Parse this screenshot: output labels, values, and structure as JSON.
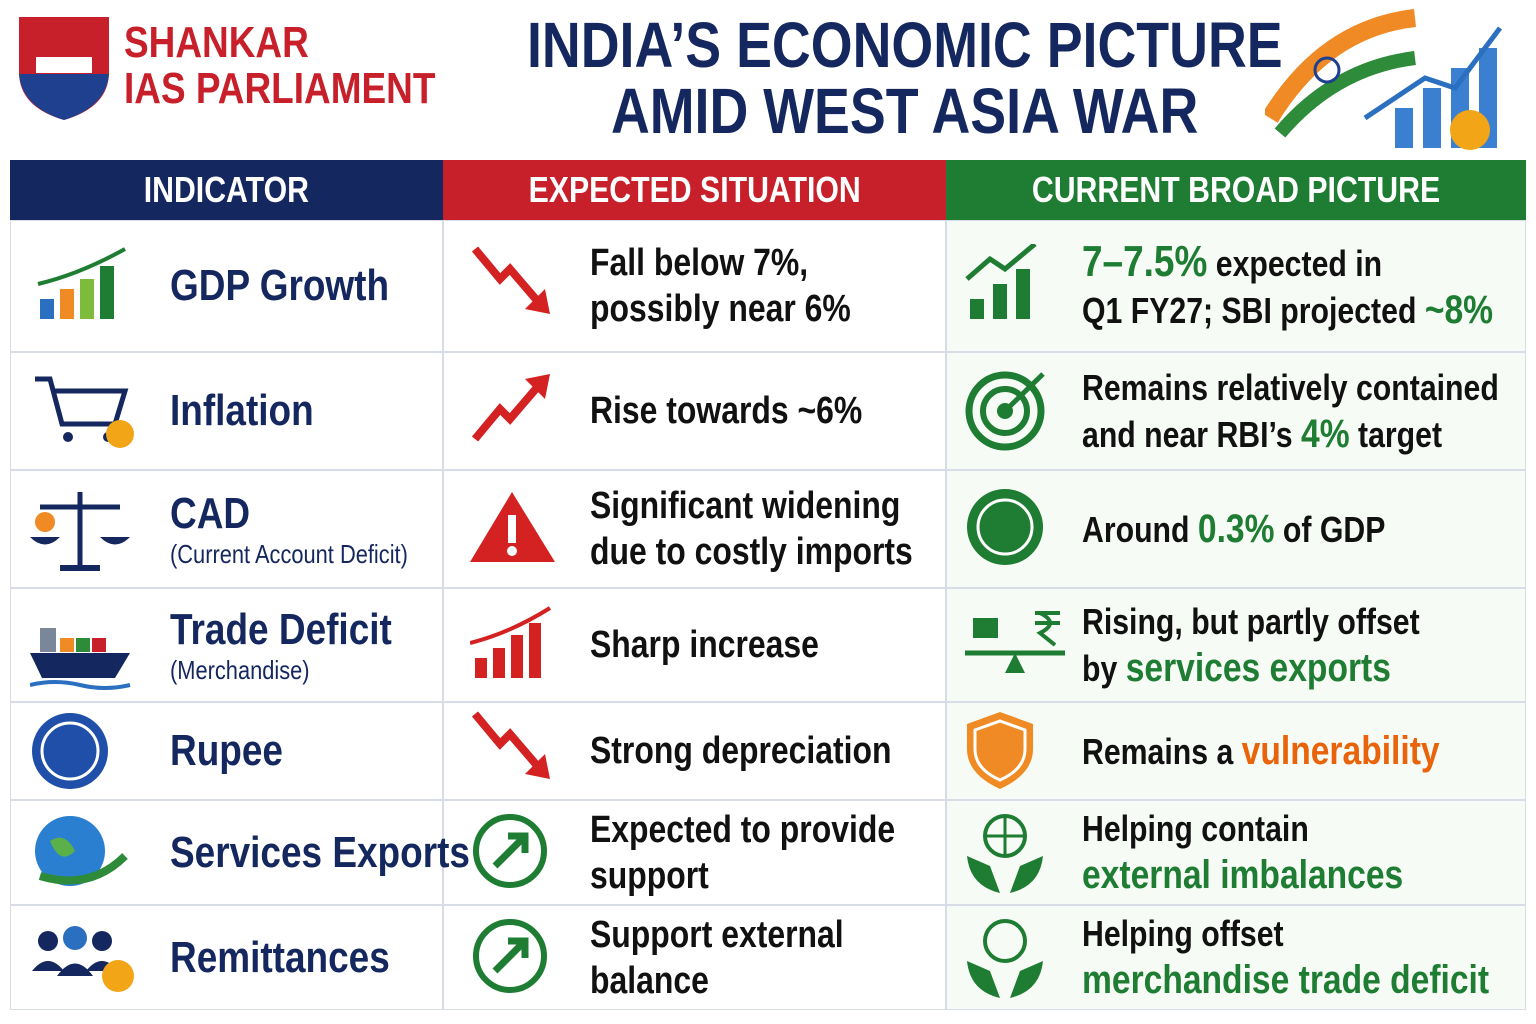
{
  "header": {
    "brand": [
      "SHANKAR",
      "IAS PARLIAMENT"
    ],
    "title": [
      "INDIA’S ECONOMIC PICTURE",
      "AMID WEST ASIA WAR"
    ]
  },
  "table": {
    "columns": [
      "INDICATOR",
      "EXPECTED SITUATION",
      "CURRENT BROAD PICTURE"
    ],
    "rows": [
      {
        "indicator": "GDP Growth",
        "expected": [
          "Fall below 7%,",
          "possibly near 6%"
        ],
        "current": [
          [
            {
              "text": "7–7.5%",
              "color": "#1e7d32"
            },
            {
              "text": " expected in"
            }
          ],
          [
            {
              "text": "Q1 FY27; SBI projected "
            },
            {
              "text": "~8%",
              "color": "#1e7d32"
            }
          ]
        ]
      },
      {
        "indicator": "Inflation",
        "expected": [
          "Rise towards ~6%"
        ],
        "current": [
          [
            {
              "text": "Remains relatively contained"
            }
          ],
          [
            {
              "text": "and near RBI’s "
            },
            {
              "text": "4%",
              "color": "#1e7d32"
            },
            {
              "text": " target"
            }
          ]
        ]
      },
      {
        "indicator": "CAD",
        "sub": "(Current Account Deficit)",
        "expected": [
          "Significant widening",
          "due to costly imports"
        ],
        "current": [
          [
            {
              "text": "Around "
            },
            {
              "text": "0.3%",
              "color": "#1e7d32"
            },
            {
              "text": " of GDP"
            }
          ]
        ]
      },
      {
        "indicator": "Trade Deficit",
        "sub": "(Merchandise)",
        "expected": [
          "Sharp increase"
        ],
        "current": [
          [
            {
              "text": "Rising, but partly offset"
            }
          ],
          [
            {
              "text": "by "
            },
            {
              "text": "services exports",
              "color": "#1e7d32"
            }
          ]
        ]
      },
      {
        "indicator": "Rupee",
        "expected": [
          "Strong depreciation"
        ],
        "current": [
          [
            {
              "text": "Remains a "
            },
            {
              "text": "vulnerability",
              "color": "#e8630a"
            }
          ]
        ]
      },
      {
        "indicator": "Services Exports",
        "expected": [
          "Expected to provide",
          "support"
        ],
        "current": [
          [
            {
              "text": "Helping contain"
            }
          ],
          [
            {
              "text": "external imbalances",
              "color": "#1e7d32"
            }
          ]
        ]
      },
      {
        "indicator": "Remittances",
        "expected": [
          "Support external",
          "balance"
        ],
        "current": [
          [
            {
              "text": "Helping offset"
            }
          ],
          [
            {
              "text": "merchandise trade deficit",
              "color": "#1e7d32"
            }
          ]
        ]
      }
    ]
  }
}
